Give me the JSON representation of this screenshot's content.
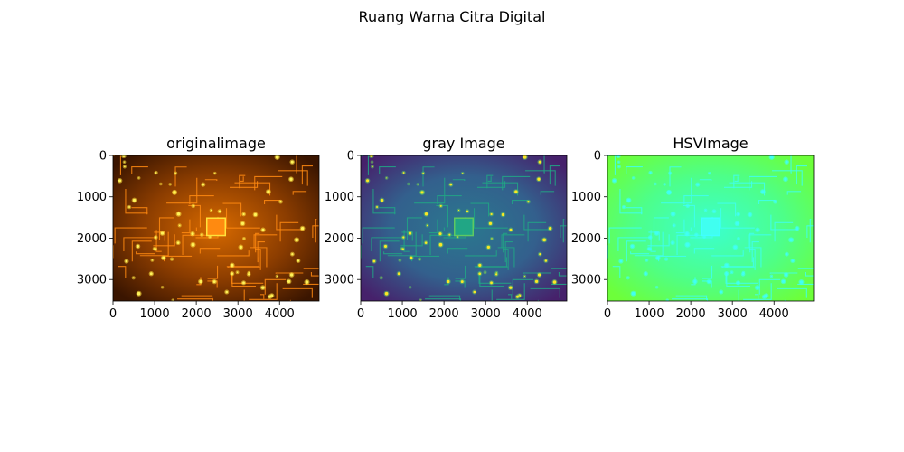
{
  "figure": {
    "suptitle": "Ruang Warna Citra Digital"
  },
  "chart_data": [
    {
      "type": "image",
      "title": "originalimage",
      "colormap": "original",
      "xlim": [
        0,
        4950
      ],
      "ylim": [
        3520,
        0
      ],
      "xticks": [
        0,
        1000,
        2000,
        3000,
        4000
      ],
      "yticks": [
        0,
        1000,
        2000,
        3000
      ],
      "colors": {
        "bg_dark": "#3a1500",
        "bg_mid": "#8a3c00",
        "bg_light": "#d86a00",
        "trace": "#ff8a10",
        "glow": "#ffe23a",
        "dot": "#fff35a"
      }
    },
    {
      "type": "image",
      "title": "gray Image",
      "colormap": "viridis",
      "xlim": [
        0,
        4950
      ],
      "ylim": [
        3520,
        0
      ],
      "xticks": [
        0,
        1000,
        2000,
        3000,
        4000
      ],
      "yticks": [
        0,
        1000,
        2000,
        3000
      ],
      "colors": {
        "bg_dark": "#46216b",
        "bg_mid": "#33608d",
        "bg_light": "#2a788e",
        "trace": "#21a685",
        "glow": "#5ec962",
        "dot": "#fde725"
      }
    },
    {
      "type": "image",
      "title": "HSVImage",
      "colormap": "hsv",
      "xlim": [
        0,
        4950
      ],
      "ylim": [
        3520,
        0
      ],
      "xticks": [
        0,
        1000,
        2000,
        3000,
        4000
      ],
      "yticks": [
        0,
        1000,
        2000,
        3000
      ],
      "colors": {
        "bg_dark": "#6dff3a",
        "bg_mid": "#4dff8a",
        "bg_light": "#3affd0",
        "trace": "#40fff0",
        "glow": "#40ffff",
        "dot": "#40fff5"
      }
    }
  ]
}
